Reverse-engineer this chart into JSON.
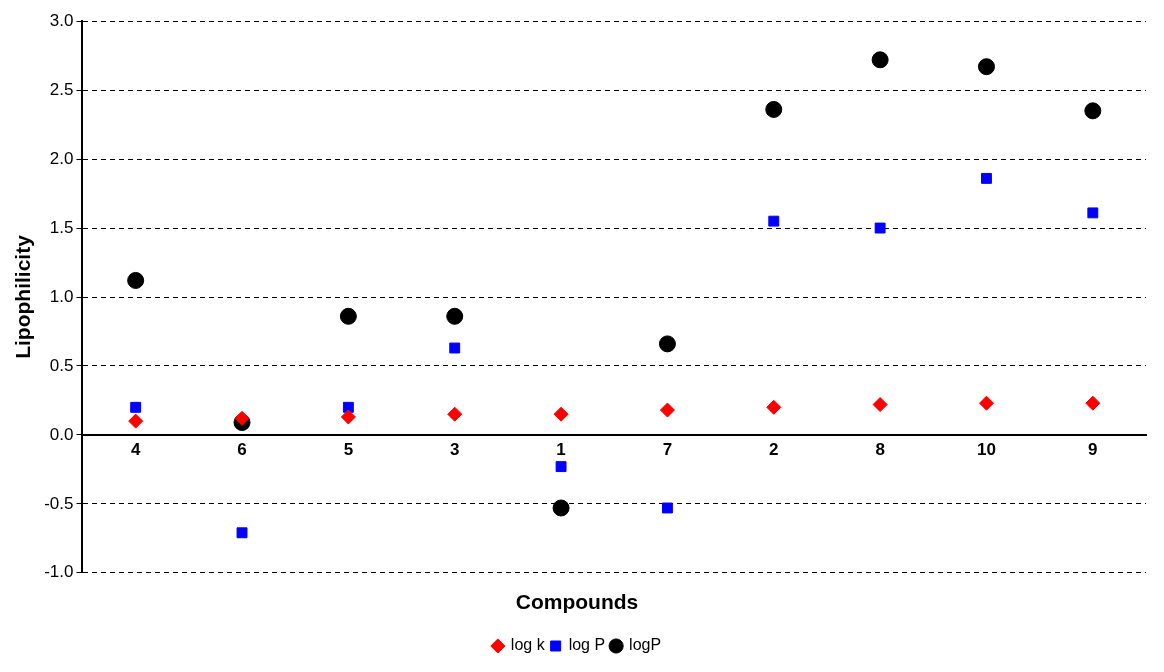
{
  "chart_data": {
    "type": "scatter",
    "xlabel": "Compounds",
    "ylabel": "Lipophilicity",
    "categories": [
      "4",
      "6",
      "5",
      "3",
      "1",
      "7",
      "2",
      "8",
      "10",
      "9"
    ],
    "series": [
      {
        "name": "log k",
        "color": "#ff0000",
        "marker": "diamond",
        "values": [
          0.1,
          0.12,
          0.13,
          0.15,
          0.15,
          0.18,
          0.2,
          0.22,
          0.23,
          0.23
        ]
      },
      {
        "name": "log P",
        "color": "#0000ff",
        "marker": "square",
        "values": [
          0.2,
          -0.71,
          0.2,
          0.63,
          -0.23,
          -0.53,
          1.55,
          1.5,
          1.86,
          1.61
        ]
      },
      {
        "name": "logP",
        "color": "#000000",
        "marker": "circle",
        "values": [
          1.12,
          0.09,
          0.86,
          0.86,
          -0.53,
          0.66,
          2.36,
          2.72,
          2.67,
          2.35
        ]
      }
    ],
    "ylim": [
      -1.0,
      3.0
    ],
    "yticks": [
      {
        "value": -1,
        "label": "-1.0"
      },
      {
        "value": -0.5,
        "label": "-0.5"
      },
      {
        "value": 0,
        "label": "0.0"
      },
      {
        "value": 0.5,
        "label": "0.5"
      },
      {
        "value": 1,
        "label": "1.0"
      },
      {
        "value": 1.5,
        "label": "1.5"
      },
      {
        "value": 2,
        "label": "2.0"
      },
      {
        "value": 2.5,
        "label": "2.5"
      },
      {
        "value": 3,
        "label": "3.0"
      }
    ],
    "grid": "y",
    "legend": "bottom"
  }
}
